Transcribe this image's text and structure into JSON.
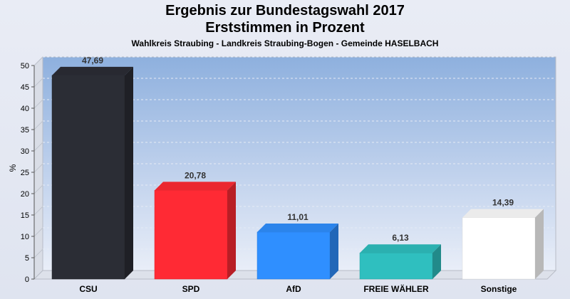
{
  "chart_data": {
    "type": "bar",
    "title": "Ergebnis zur Bundestagswahl 2017",
    "subtitle": "Erststimmen in Prozent",
    "caption": "Wahlkreis Straubing - Landkreis Straubing-Bogen - Gemeinde HASELBACH",
    "ylabel": "%",
    "xlabel": "",
    "ylim": [
      0,
      50
    ],
    "yticks": [
      "0",
      "5",
      "10",
      "15",
      "20",
      "25",
      "30",
      "35",
      "40",
      "45",
      "50"
    ],
    "categories": [
      "CSU",
      "SPD",
      "AfD",
      "FREIE WÄHLER",
      "Sonstige"
    ],
    "values": [
      47.69,
      20.78,
      11.01,
      6.13,
      14.39
    ],
    "value_labels": [
      "47,69",
      "20,78",
      "11,01",
      "6,13",
      "14,39"
    ],
    "colors": [
      "#2b2d35",
      "#ff2a34",
      "#2f8fff",
      "#2fbfbf",
      "#ffffff"
    ],
    "grid": true,
    "legend": "none"
  }
}
